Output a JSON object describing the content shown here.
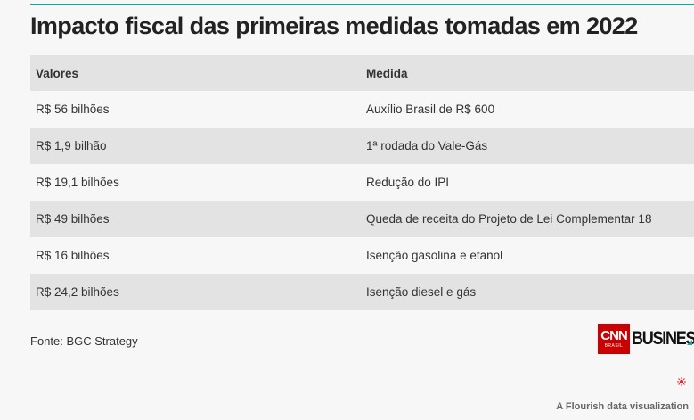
{
  "title": "Impacto fiscal das primeiras medidas tomadas em 2022",
  "table": {
    "headers": [
      "Valores",
      "Medida"
    ],
    "rows": [
      [
        "R$ 56 bilhões",
        "Auxílio Brasil de R$ 600"
      ],
      [
        "R$ 1,9 bilhão",
        "1ª rodada do Vale-Gás"
      ],
      [
        "R$ 19,1 bilhões",
        "Redução do IPI"
      ],
      [
        "R$ 49 bilhões",
        "Queda de receita do Projeto de Lei Complementar 18"
      ],
      [
        "R$ 16 bilhões",
        "Isenção gasolina e etanol"
      ],
      [
        "R$ 24,2 bilhões",
        "Isenção diesel e gás"
      ]
    ]
  },
  "source": "Fonte: BGC Strategy",
  "logo": {
    "cnn": "CNN",
    "brasil": "BRASIL",
    "business": "BUSINESS"
  },
  "credit": "A Flourish data visualization",
  "colors": {
    "accent": "#2a9d8f",
    "cnn_red": "#cc0000",
    "row_shade": "#e3e3e3",
    "flourish_red": "#e8272d"
  },
  "icons": {
    "flourish": "flourish-logo-icon"
  }
}
